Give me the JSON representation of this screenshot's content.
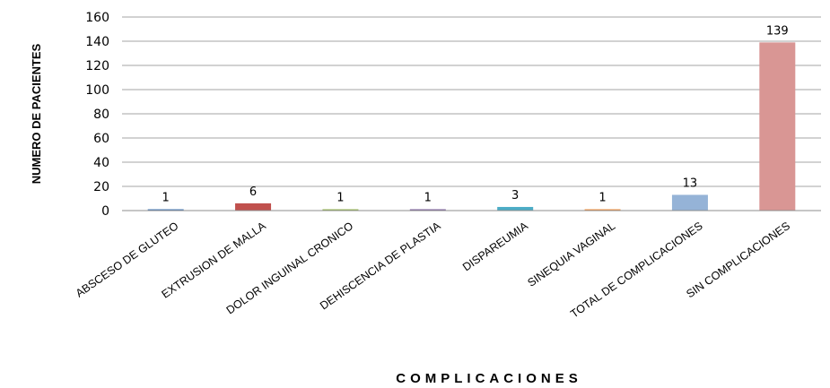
{
  "chart_data": {
    "type": "bar",
    "categories": [
      "ABSCESO DE GLUTEO",
      "EXTRUSION DE MALLA",
      "DOLOR INGUINAL CRONICO",
      "DEHISCENCIA DE PLASTIA",
      "DISPAREUMIA",
      "SINEQUIA VAGINAL",
      "TOTAL DE COMPLICACIONES",
      "SIN COMPLICACIONES"
    ],
    "values": [
      1,
      6,
      1,
      1,
      3,
      1,
      13,
      139
    ],
    "data_labels": [
      "1",
      "6",
      "1",
      "1",
      "3",
      "1",
      "13",
      "139"
    ],
    "colors": [
      "#4f81bd",
      "#c0504d",
      "#9bbb59",
      "#8064a2",
      "#4bacc6",
      "#f79646",
      "#95b3d7",
      "#d99694"
    ],
    "xlabel": "COMPLICACIONES",
    "ylabel": "NUMERO DE PACIENTES",
    "ylim": [
      0,
      160
    ],
    "yticks": [
      0,
      20,
      40,
      60,
      80,
      100,
      120,
      140,
      160
    ],
    "ytick_labels": [
      "0",
      "20",
      "40",
      "60",
      "80",
      "100",
      "120",
      "140",
      "160"
    ],
    "grid": true,
    "legend": "none"
  }
}
